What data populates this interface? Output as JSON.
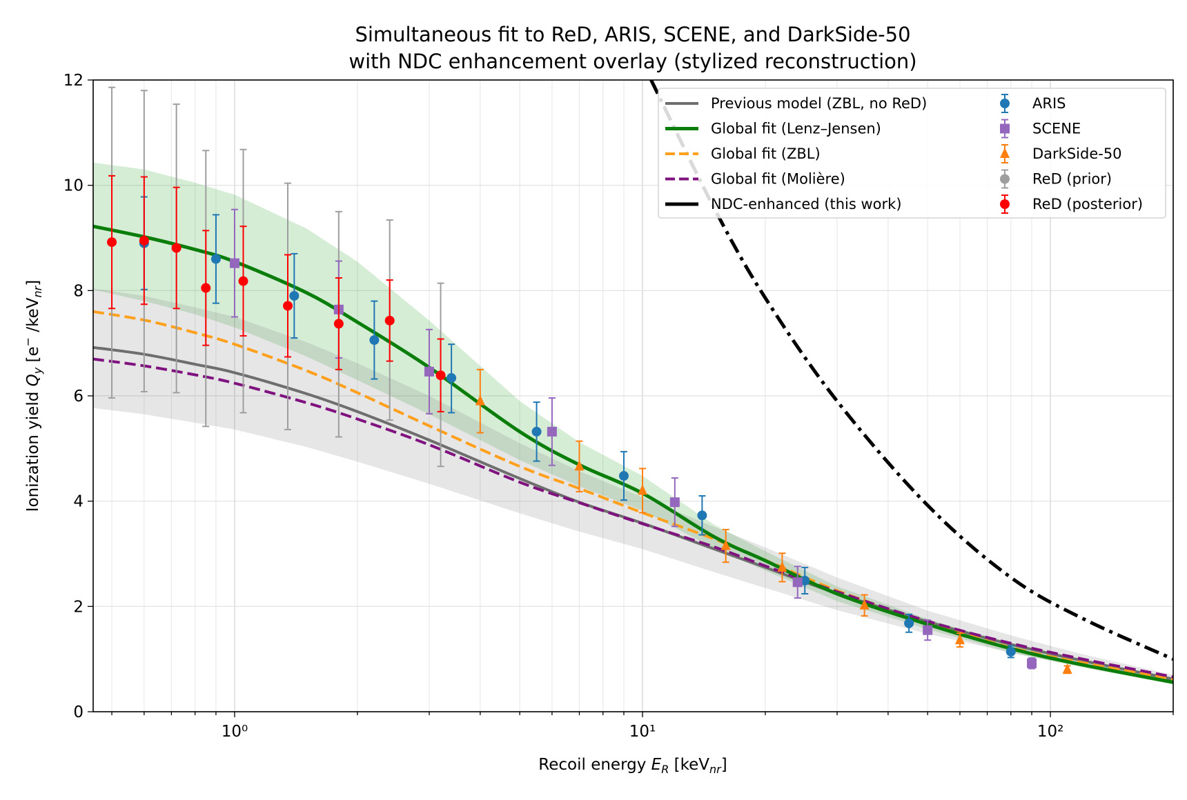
{
  "chart_data": {
    "type": "line",
    "title": [
      "Simultaneous fit to ReD, ARIS, SCENE, and DarkSide-50",
      "with NDC enhancement overlay (stylized reconstruction)"
    ],
    "xlabel": "Recoil energy E_R [keV_nr]",
    "ylabel": "Ionization yield Q_y [e⁻/keV_nr]",
    "xscale": "log",
    "xlim": [
      0.45,
      200
    ],
    "ylim": [
      0,
      12
    ],
    "yticks": [
      0,
      2,
      4,
      6,
      8,
      10,
      12
    ],
    "xticks_major": [
      1,
      10,
      100
    ],
    "xtick_labels": [
      "10⁰",
      "10¹",
      "10²"
    ],
    "grid": true,
    "legend_position": "top-right",
    "colors": {
      "previous": "#6e6e6e",
      "lenz": "#0a7d0a",
      "zbl": "#ffa01c",
      "moliere": "#7f127f",
      "ndc": "#000000",
      "aris": "#1f77b4",
      "scene": "#9467bd",
      "ds50": "#ff7f0e",
      "red_prior": "#9e9e9e",
      "red_post": "#ff0000",
      "band_green": "#2ca02c",
      "band_gray": "#808080"
    },
    "lines": [
      {
        "key": "previous",
        "name": "Previous model (ZBL, no ReD)",
        "style": "solid",
        "x": [
          0.45,
          0.6,
          0.8,
          1,
          1.5,
          2,
          3,
          5,
          7,
          10,
          15,
          20,
          30,
          50,
          80,
          120,
          200
        ],
        "y": [
          6.92,
          6.79,
          6.6,
          6.44,
          6.04,
          5.7,
          5.16,
          4.43,
          3.98,
          3.58,
          3.09,
          2.74,
          2.25,
          1.71,
          1.28,
          0.97,
          0.62
        ]
      },
      {
        "key": "lenz",
        "name": "Global fit (Lenz–Jensen)",
        "style": "solid",
        "x": [
          0.45,
          0.6,
          0.8,
          1,
          1.5,
          2,
          3,
          5,
          7,
          10,
          15,
          20,
          30,
          50,
          80,
          120,
          200
        ],
        "y": [
          9.22,
          9.02,
          8.78,
          8.55,
          7.96,
          7.4,
          6.54,
          5.32,
          4.69,
          4.15,
          3.32,
          2.87,
          2.24,
          1.66,
          1.2,
          0.89,
          0.56
        ]
      },
      {
        "key": "zbl",
        "name": "Global fit (ZBL)",
        "style": "dashed",
        "x": [
          0.45,
          0.6,
          0.8,
          1,
          1.5,
          2,
          3,
          5,
          7,
          10,
          15,
          20,
          30,
          50,
          80,
          120,
          200
        ],
        "y": [
          7.6,
          7.44,
          7.2,
          6.98,
          6.48,
          6.06,
          5.43,
          4.66,
          4.24,
          3.78,
          3.28,
          2.88,
          2.3,
          1.7,
          1.22,
          0.93,
          0.62
        ]
      },
      {
        "key": "moliere",
        "name": "Global fit (Molière)",
        "style": "dashed",
        "x": [
          0.45,
          0.6,
          0.8,
          1,
          1.5,
          2,
          3,
          5,
          7,
          10,
          15,
          20,
          30,
          50,
          80,
          120,
          200
        ],
        "y": [
          6.7,
          6.57,
          6.4,
          6.24,
          5.87,
          5.56,
          5.07,
          4.36,
          3.97,
          3.57,
          3.13,
          2.77,
          2.28,
          1.72,
          1.3,
          1.0,
          0.66
        ]
      },
      {
        "key": "ndc",
        "name": "NDC-enhanced (this work)",
        "style": "dashdot",
        "x": [
          10.5,
          15,
          20,
          30,
          50,
          80,
          120,
          200
        ],
        "y": [
          12.0,
          9.56,
          7.86,
          5.9,
          3.92,
          2.55,
          1.77,
          1.0
        ]
      }
    ],
    "bands": [
      {
        "key": "band_green",
        "x": [
          0.45,
          0.6,
          0.8,
          1,
          1.5,
          2,
          3,
          5,
          7,
          10,
          15,
          20,
          30,
          50,
          80,
          120,
          200
        ],
        "lower": [
          8.02,
          7.8,
          7.55,
          7.3,
          6.75,
          6.3,
          5.65,
          4.78,
          4.28,
          3.82,
          3.1,
          2.68,
          2.1,
          1.57,
          1.12,
          0.84,
          0.52
        ],
        "upper": [
          10.43,
          10.3,
          10.05,
          9.82,
          9.18,
          8.55,
          7.43,
          5.9,
          5.12,
          4.48,
          3.55,
          3.05,
          2.38,
          1.76,
          1.28,
          0.95,
          0.6
        ]
      },
      {
        "key": "band_gray",
        "x": [
          0.45,
          0.6,
          0.8,
          1,
          1.5,
          2,
          3,
          5,
          7,
          10,
          15,
          20,
          30,
          50,
          80,
          120,
          200
        ],
        "lower": [
          5.77,
          5.65,
          5.49,
          5.36,
          5.03,
          4.75,
          4.33,
          3.77,
          3.42,
          3.09,
          2.65,
          2.35,
          1.93,
          1.48,
          1.12,
          0.86,
          0.56
        ],
        "upper": [
          8.04,
          7.9,
          7.68,
          7.5,
          7.02,
          6.62,
          6.0,
          5.1,
          4.57,
          4.07,
          3.51,
          3.12,
          2.55,
          1.92,
          1.45,
          1.09,
          0.7
        ]
      }
    ],
    "series": [
      {
        "key": "aris",
        "name": "ARIS",
        "marker": "circle",
        "points": [
          {
            "x": 0.6,
            "y": 8.9,
            "lo": 8.02,
            "hi": 9.78
          },
          {
            "x": 0.9,
            "y": 8.6,
            "lo": 7.76,
            "hi": 9.44
          },
          {
            "x": 1.4,
            "y": 7.9,
            "lo": 7.1,
            "hi": 8.7
          },
          {
            "x": 2.2,
            "y": 7.06,
            "lo": 6.32,
            "hi": 7.8
          },
          {
            "x": 3.4,
            "y": 6.34,
            "lo": 5.68,
            "hi": 6.98
          },
          {
            "x": 5.5,
            "y": 5.32,
            "lo": 4.76,
            "hi": 5.88
          },
          {
            "x": 9.0,
            "y": 4.48,
            "lo": 4.02,
            "hi": 4.94
          },
          {
            "x": 14.0,
            "y": 3.73,
            "lo": 3.36,
            "hi": 4.1
          },
          {
            "x": 25.0,
            "y": 2.49,
            "lo": 2.24,
            "hi": 2.74
          },
          {
            "x": 45.0,
            "y": 1.68,
            "lo": 1.51,
            "hi": 1.85
          },
          {
            "x": 80.0,
            "y": 1.14,
            "lo": 1.03,
            "hi": 1.25
          }
        ]
      },
      {
        "key": "scene",
        "name": "SCENE",
        "marker": "square",
        "points": [
          {
            "x": 1.0,
            "y": 8.52,
            "lo": 7.5,
            "hi": 9.54
          },
          {
            "x": 1.8,
            "y": 7.64,
            "lo": 6.72,
            "hi": 8.56
          },
          {
            "x": 3.0,
            "y": 6.46,
            "lo": 5.66,
            "hi": 7.26
          },
          {
            "x": 6.0,
            "y": 5.32,
            "lo": 4.68,
            "hi": 5.96
          },
          {
            "x": 12.0,
            "y": 3.98,
            "lo": 3.52,
            "hi": 4.44
          },
          {
            "x": 24.0,
            "y": 2.46,
            "lo": 2.16,
            "hi": 2.76
          },
          {
            "x": 50.0,
            "y": 1.55,
            "lo": 1.36,
            "hi": 1.74
          },
          {
            "x": 90.0,
            "y": 0.92,
            "lo": 0.82,
            "hi": 1.02
          }
        ]
      },
      {
        "key": "ds50",
        "name": "DarkSide-50",
        "marker": "triangle",
        "points": [
          {
            "x": 4.0,
            "y": 5.9,
            "lo": 5.3,
            "hi": 6.5
          },
          {
            "x": 7.0,
            "y": 4.66,
            "lo": 4.18,
            "hi": 5.14
          },
          {
            "x": 10.0,
            "y": 4.2,
            "lo": 3.78,
            "hi": 4.62
          },
          {
            "x": 16.0,
            "y": 3.15,
            "lo": 2.84,
            "hi": 3.46
          },
          {
            "x": 22.0,
            "y": 2.74,
            "lo": 2.47,
            "hi": 3.01
          },
          {
            "x": 35.0,
            "y": 2.02,
            "lo": 1.82,
            "hi": 2.22
          },
          {
            "x": 60.0,
            "y": 1.36,
            "lo": 1.23,
            "hi": 1.49
          },
          {
            "x": 110.0,
            "y": 0.8,
            "lo": 0.73,
            "hi": 0.87
          }
        ]
      },
      {
        "key": "red_prior",
        "name": "ReD (prior)",
        "marker": "circle",
        "points": [
          {
            "x": 0.5,
            "y": 8.9,
            "lo": 5.96,
            "hi": 11.86
          },
          {
            "x": 0.6,
            "y": 8.94,
            "lo": 6.08,
            "hi": 11.8
          },
          {
            "x": 0.72,
            "y": 8.8,
            "lo": 6.06,
            "hi": 11.54
          },
          {
            "x": 0.85,
            "y": 8.04,
            "lo": 5.42,
            "hi": 10.66
          },
          {
            "x": 1.05,
            "y": 8.18,
            "lo": 5.68,
            "hi": 10.68
          },
          {
            "x": 1.35,
            "y": 7.7,
            "lo": 5.36,
            "hi": 10.04
          },
          {
            "x": 1.8,
            "y": 7.36,
            "lo": 5.22,
            "hi": 9.5
          },
          {
            "x": 2.4,
            "y": 7.44,
            "lo": 5.54,
            "hi": 9.34
          },
          {
            "x": 3.2,
            "y": 6.4,
            "lo": 4.66,
            "hi": 8.14
          }
        ]
      },
      {
        "key": "red_post",
        "name": "ReD (posterior)",
        "marker": "circle",
        "points": [
          {
            "x": 0.5,
            "y": 8.92,
            "lo": 7.66,
            "hi": 10.18
          },
          {
            "x": 0.6,
            "y": 8.95,
            "lo": 7.74,
            "hi": 10.16
          },
          {
            "x": 0.72,
            "y": 8.81,
            "lo": 7.66,
            "hi": 9.96
          },
          {
            "x": 0.85,
            "y": 8.05,
            "lo": 6.96,
            "hi": 9.14
          },
          {
            "x": 1.05,
            "y": 8.18,
            "lo": 7.14,
            "hi": 9.22
          },
          {
            "x": 1.35,
            "y": 7.71,
            "lo": 6.74,
            "hi": 8.68
          },
          {
            "x": 1.8,
            "y": 7.37,
            "lo": 6.5,
            "hi": 8.24
          },
          {
            "x": 2.4,
            "y": 7.43,
            "lo": 6.66,
            "hi": 8.2
          },
          {
            "x": 3.2,
            "y": 6.39,
            "lo": 5.7,
            "hi": 7.08
          }
        ]
      }
    ]
  }
}
